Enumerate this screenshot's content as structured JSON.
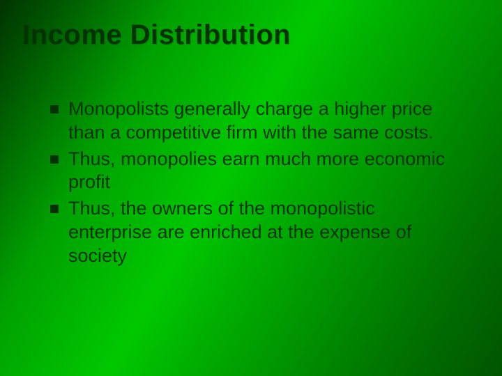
{
  "slide": {
    "title": "Income Distribution",
    "title_color": "#003300",
    "title_fontsize": 40,
    "title_fontweight": 700,
    "background_gradient_stops": [
      "#003300",
      "#005500",
      "#00a000",
      "#00c800",
      "#00b000",
      "#009000",
      "#007000",
      "#005500"
    ],
    "body_color": "#003300",
    "body_fontsize": 27,
    "bullet_marker_color": "#003300",
    "bullet_marker_size": 12,
    "bullets": [
      "Monopolists generally charge a higher price than a competitive firm with the same costs.",
      " Thus, monopolies earn much more economic profit",
      "Thus, the owners of the monopolistic enterprise are enriched at the expense of society"
    ]
  }
}
